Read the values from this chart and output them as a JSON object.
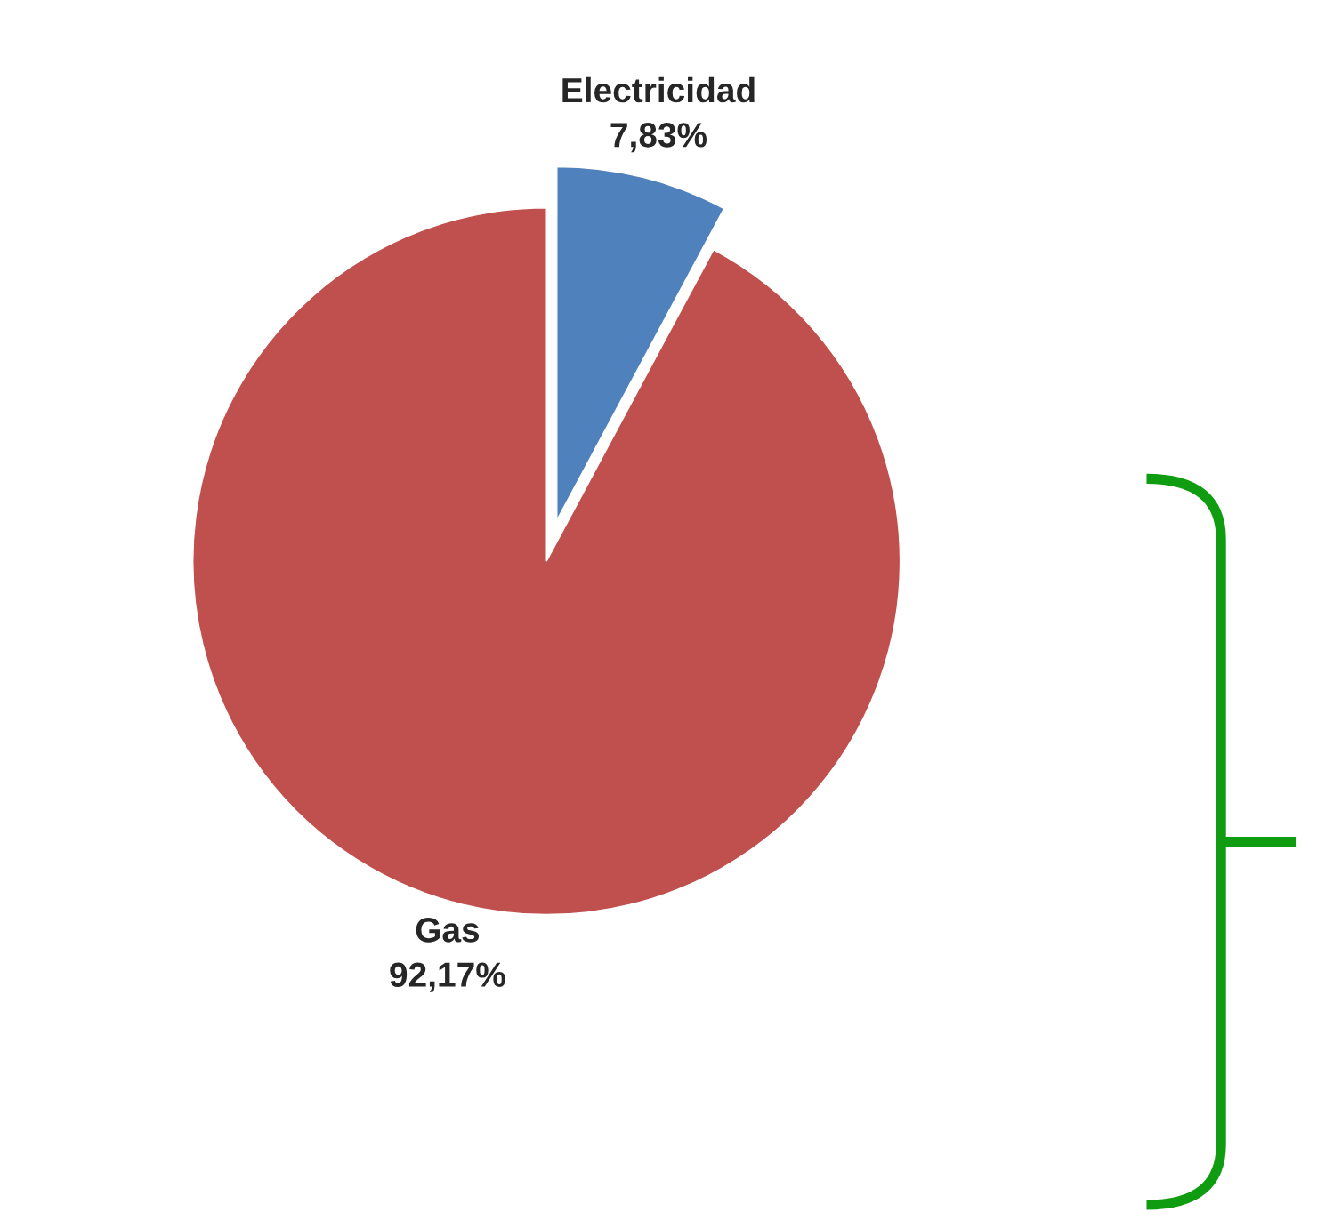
{
  "chart_data": {
    "type": "pie",
    "categories": [
      "Electricidad",
      "Gas"
    ],
    "values": [
      7.83,
      92.17
    ],
    "colors": [
      "#4f81bd",
      "#c0504d"
    ],
    "value_labels": [
      "7,83%",
      "92,17%"
    ]
  }
}
